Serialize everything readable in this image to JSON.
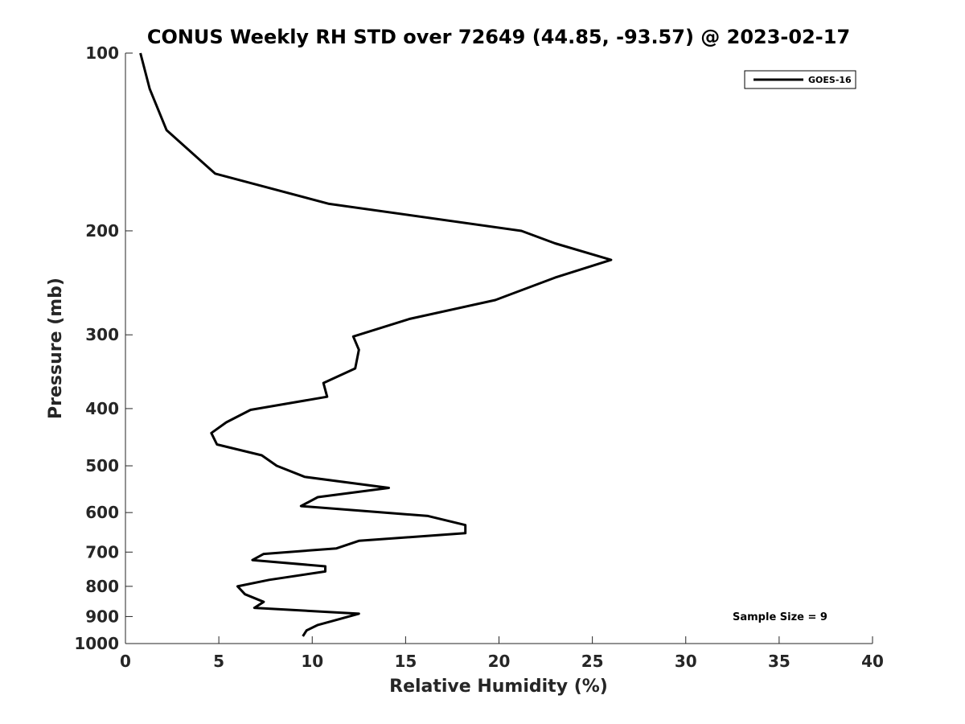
{
  "chart_data": {
    "type": "line",
    "title": "CONUS Weekly RH STD over 72649 (44.85, -93.57) @ 2023-02-17",
    "xlabel": "Relative Humidity (%)",
    "ylabel": "Pressure (mb)",
    "xlim": [
      0,
      40
    ],
    "ylim": [
      100,
      1000
    ],
    "y_scale": "log",
    "y_reversed": true,
    "xticks": [
      0,
      5,
      10,
      15,
      20,
      25,
      30,
      35,
      40
    ],
    "xtick_labels": [
      "0",
      "5",
      "10",
      "15",
      "20",
      "25",
      "30",
      "35",
      "40"
    ],
    "yticks": [
      100,
      200,
      300,
      400,
      500,
      600,
      700,
      800,
      900,
      1000
    ],
    "ytick_labels": [
      "100",
      "200",
      "300",
      "400",
      "500",
      "600",
      "700",
      "800",
      "900",
      "1000"
    ],
    "grid": false,
    "legend": {
      "position": "top-right",
      "entries": [
        "GOES-16"
      ]
    },
    "annotation": "Sample Size = 9",
    "series": [
      {
        "name": "GOES-16",
        "color": "#000000",
        "x": [
          0.8,
          1.3,
          2.2,
          4.8,
          10.9,
          21.2,
          23.0,
          26.0,
          23.0,
          19.8,
          15.2,
          12.2,
          12.5,
          12.3,
          10.6,
          10.8,
          6.7,
          5.4,
          4.6,
          4.9,
          7.3,
          8.1,
          9.6,
          14.1,
          10.3,
          9.4,
          16.2,
          18.2,
          18.2,
          12.5,
          11.3,
          7.4,
          6.8,
          10.7,
          10.7,
          7.7,
          6.0,
          6.4,
          7.4,
          6.9,
          12.5,
          11.4,
          10.3,
          9.7,
          9.5
        ],
        "y": [
          100,
          115,
          135,
          160,
          180,
          200,
          210,
          224,
          240,
          262,
          282,
          302,
          318,
          342,
          362,
          382,
          402,
          422,
          440,
          460,
          480,
          500,
          522,
          545,
          565,
          585,
          608,
          630,
          650,
          670,
          690,
          705,
          722,
          740,
          755,
          780,
          800,
          825,
          850,
          870,
          890,
          910,
          930,
          950,
          972
        ]
      }
    ]
  }
}
